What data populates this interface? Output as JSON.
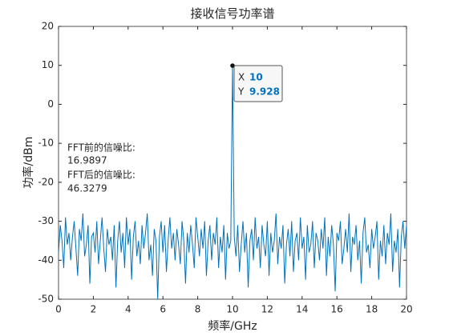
{
  "chart_data": {
    "type": "line",
    "title": "接收信号功率谱",
    "xlabel": "频率/GHz",
    "ylabel": "功率/dBm",
    "xlim": [
      0,
      20
    ],
    "ylim": [
      -50,
      20
    ],
    "xticks": [
      0,
      2,
      4,
      6,
      8,
      10,
      12,
      14,
      16,
      18,
      20
    ],
    "yticks": [
      -50,
      -40,
      -30,
      -20,
      -10,
      0,
      10,
      20
    ],
    "annotations": [
      "FFT前的信噪比:",
      "16.9897",
      "FFT后的信噪比:",
      "46.3279"
    ],
    "datatip": {
      "x_label": "X",
      "y_label": "Y"
    },
    "series": [
      {
        "color": "#0072bd",
        "x": [
          0,
          0.1,
          0.2,
          0.3,
          0.4,
          0.5,
          0.6,
          0.7,
          0.8,
          0.9,
          1,
          1.1,
          1.2,
          1.3,
          1.4,
          1.5,
          1.6,
          1.7,
          1.8,
          1.9,
          2,
          2.1,
          2.2,
          2.3,
          2.4,
          2.5,
          2.6,
          2.7,
          2.8,
          2.9,
          3,
          3.1,
          3.2,
          3.3,
          3.4,
          3.5,
          3.6,
          3.7,
          3.8,
          3.9,
          4,
          4.1,
          4.2,
          4.3,
          4.4,
          4.5,
          4.6,
          4.7,
          4.8,
          4.9,
          5,
          5.1,
          5.2,
          5.3,
          5.4,
          5.5,
          5.6,
          5.7,
          5.8,
          5.9,
          6,
          6.1,
          6.2,
          6.3,
          6.4,
          6.5,
          6.6,
          6.7,
          6.8,
          6.9,
          7,
          7.1,
          7.2,
          7.3,
          7.4,
          7.5,
          7.6,
          7.7,
          7.8,
          7.9,
          8,
          8.1,
          8.2,
          8.3,
          8.4,
          8.5,
          8.6,
          8.7,
          8.8,
          8.9,
          9,
          9.1,
          9.2,
          9.3,
          9.4,
          9.5,
          9.6,
          9.7,
          9.8,
          9.9,
          10,
          10.1,
          10.2,
          10.3,
          10.4,
          10.5,
          10.6,
          10.7,
          10.8,
          10.9,
          11,
          11.1,
          11.2,
          11.3,
          11.4,
          11.5,
          11.6,
          11.7,
          11.8,
          11.9,
          12,
          12.1,
          12.2,
          12.3,
          12.4,
          12.5,
          12.6,
          12.7,
          12.8,
          12.9,
          13,
          13.1,
          13.2,
          13.3,
          13.4,
          13.5,
          13.6,
          13.7,
          13.8,
          13.9,
          14,
          14.1,
          14.2,
          14.3,
          14.4,
          14.5,
          14.6,
          14.7,
          14.8,
          14.9,
          15,
          15.1,
          15.2,
          15.3,
          15.4,
          15.5,
          15.6,
          15.7,
          15.8,
          15.9,
          16,
          16.1,
          16.2,
          16.3,
          16.4,
          16.5,
          16.6,
          16.7,
          16.8,
          16.9,
          17,
          17.1,
          17.2,
          17.3,
          17.4,
          17.5,
          17.6,
          17.7,
          17.8,
          17.9,
          18,
          18.1,
          18.2,
          18.3,
          18.4,
          18.5,
          18.6,
          18.7,
          18.8,
          18.9,
          19,
          19.1,
          19.2,
          19.3,
          19.4,
          19.5,
          19.6,
          19.7,
          19.8,
          19.9,
          20
        ],
        "values": [
          -38,
          -31,
          -35,
          -42,
          -29,
          -36,
          -33,
          -40,
          -34,
          -30,
          -37,
          -44,
          -32,
          -35,
          -28,
          -39,
          -36,
          -31,
          -46,
          -34,
          -33,
          -38,
          -30,
          -41,
          -35,
          -29,
          -37,
          -43,
          -32,
          -36,
          -34,
          -40,
          -31,
          -47,
          -35,
          -30,
          -38,
          -33,
          -42,
          -29,
          -36,
          -32,
          -45,
          -34,
          -30,
          -39,
          -35,
          -41,
          -31,
          -37,
          -33,
          -28,
          -40,
          -36,
          -44,
          -32,
          -35,
          -50,
          -34,
          -30,
          -38,
          -31,
          -43,
          -35,
          -29,
          -37,
          -33,
          -40,
          -32,
          -36,
          -41,
          -30,
          -35,
          -46,
          -33,
          -38,
          -31,
          -36,
          -42,
          -29,
          -34,
          -39,
          -32,
          -37,
          -30,
          -44,
          -35,
          -31,
          -40,
          -33,
          -36,
          -29,
          -42,
          -34,
          -38,
          -31,
          -45,
          -33,
          -37,
          -35,
          9.928,
          -34,
          -39,
          -31,
          -43,
          -36,
          -30,
          -38,
          -33,
          -47,
          -35,
          -32,
          -40,
          -29,
          -37,
          -34,
          -42,
          -31,
          -36,
          -39,
          -30,
          -44,
          -33,
          -38,
          -35,
          -28,
          -41,
          -34,
          -37,
          -31,
          -46,
          -36,
          -32,
          -39,
          -30,
          -43,
          -35,
          -33,
          -40,
          -29,
          -37,
          -34,
          -45,
          -31,
          -38,
          -36,
          -30,
          -42,
          -33,
          -35,
          -40,
          -32,
          -37,
          -29,
          -44,
          -34,
          -39,
          -31,
          -36,
          -48,
          -33,
          -35,
          -30,
          -41,
          -37,
          -32,
          -38,
          -28,
          -43,
          -34,
          -36,
          -31,
          -40,
          -35,
          -46,
          -33,
          -29,
          -38,
          -36,
          -42,
          -32,
          -37,
          -34,
          -30,
          -45,
          -35,
          -39,
          -31,
          -41,
          -33,
          -36,
          -28,
          -43,
          -35,
          -38,
          -32,
          -47,
          -34,
          -30,
          -37,
          -31
        ]
      }
    ]
  }
}
